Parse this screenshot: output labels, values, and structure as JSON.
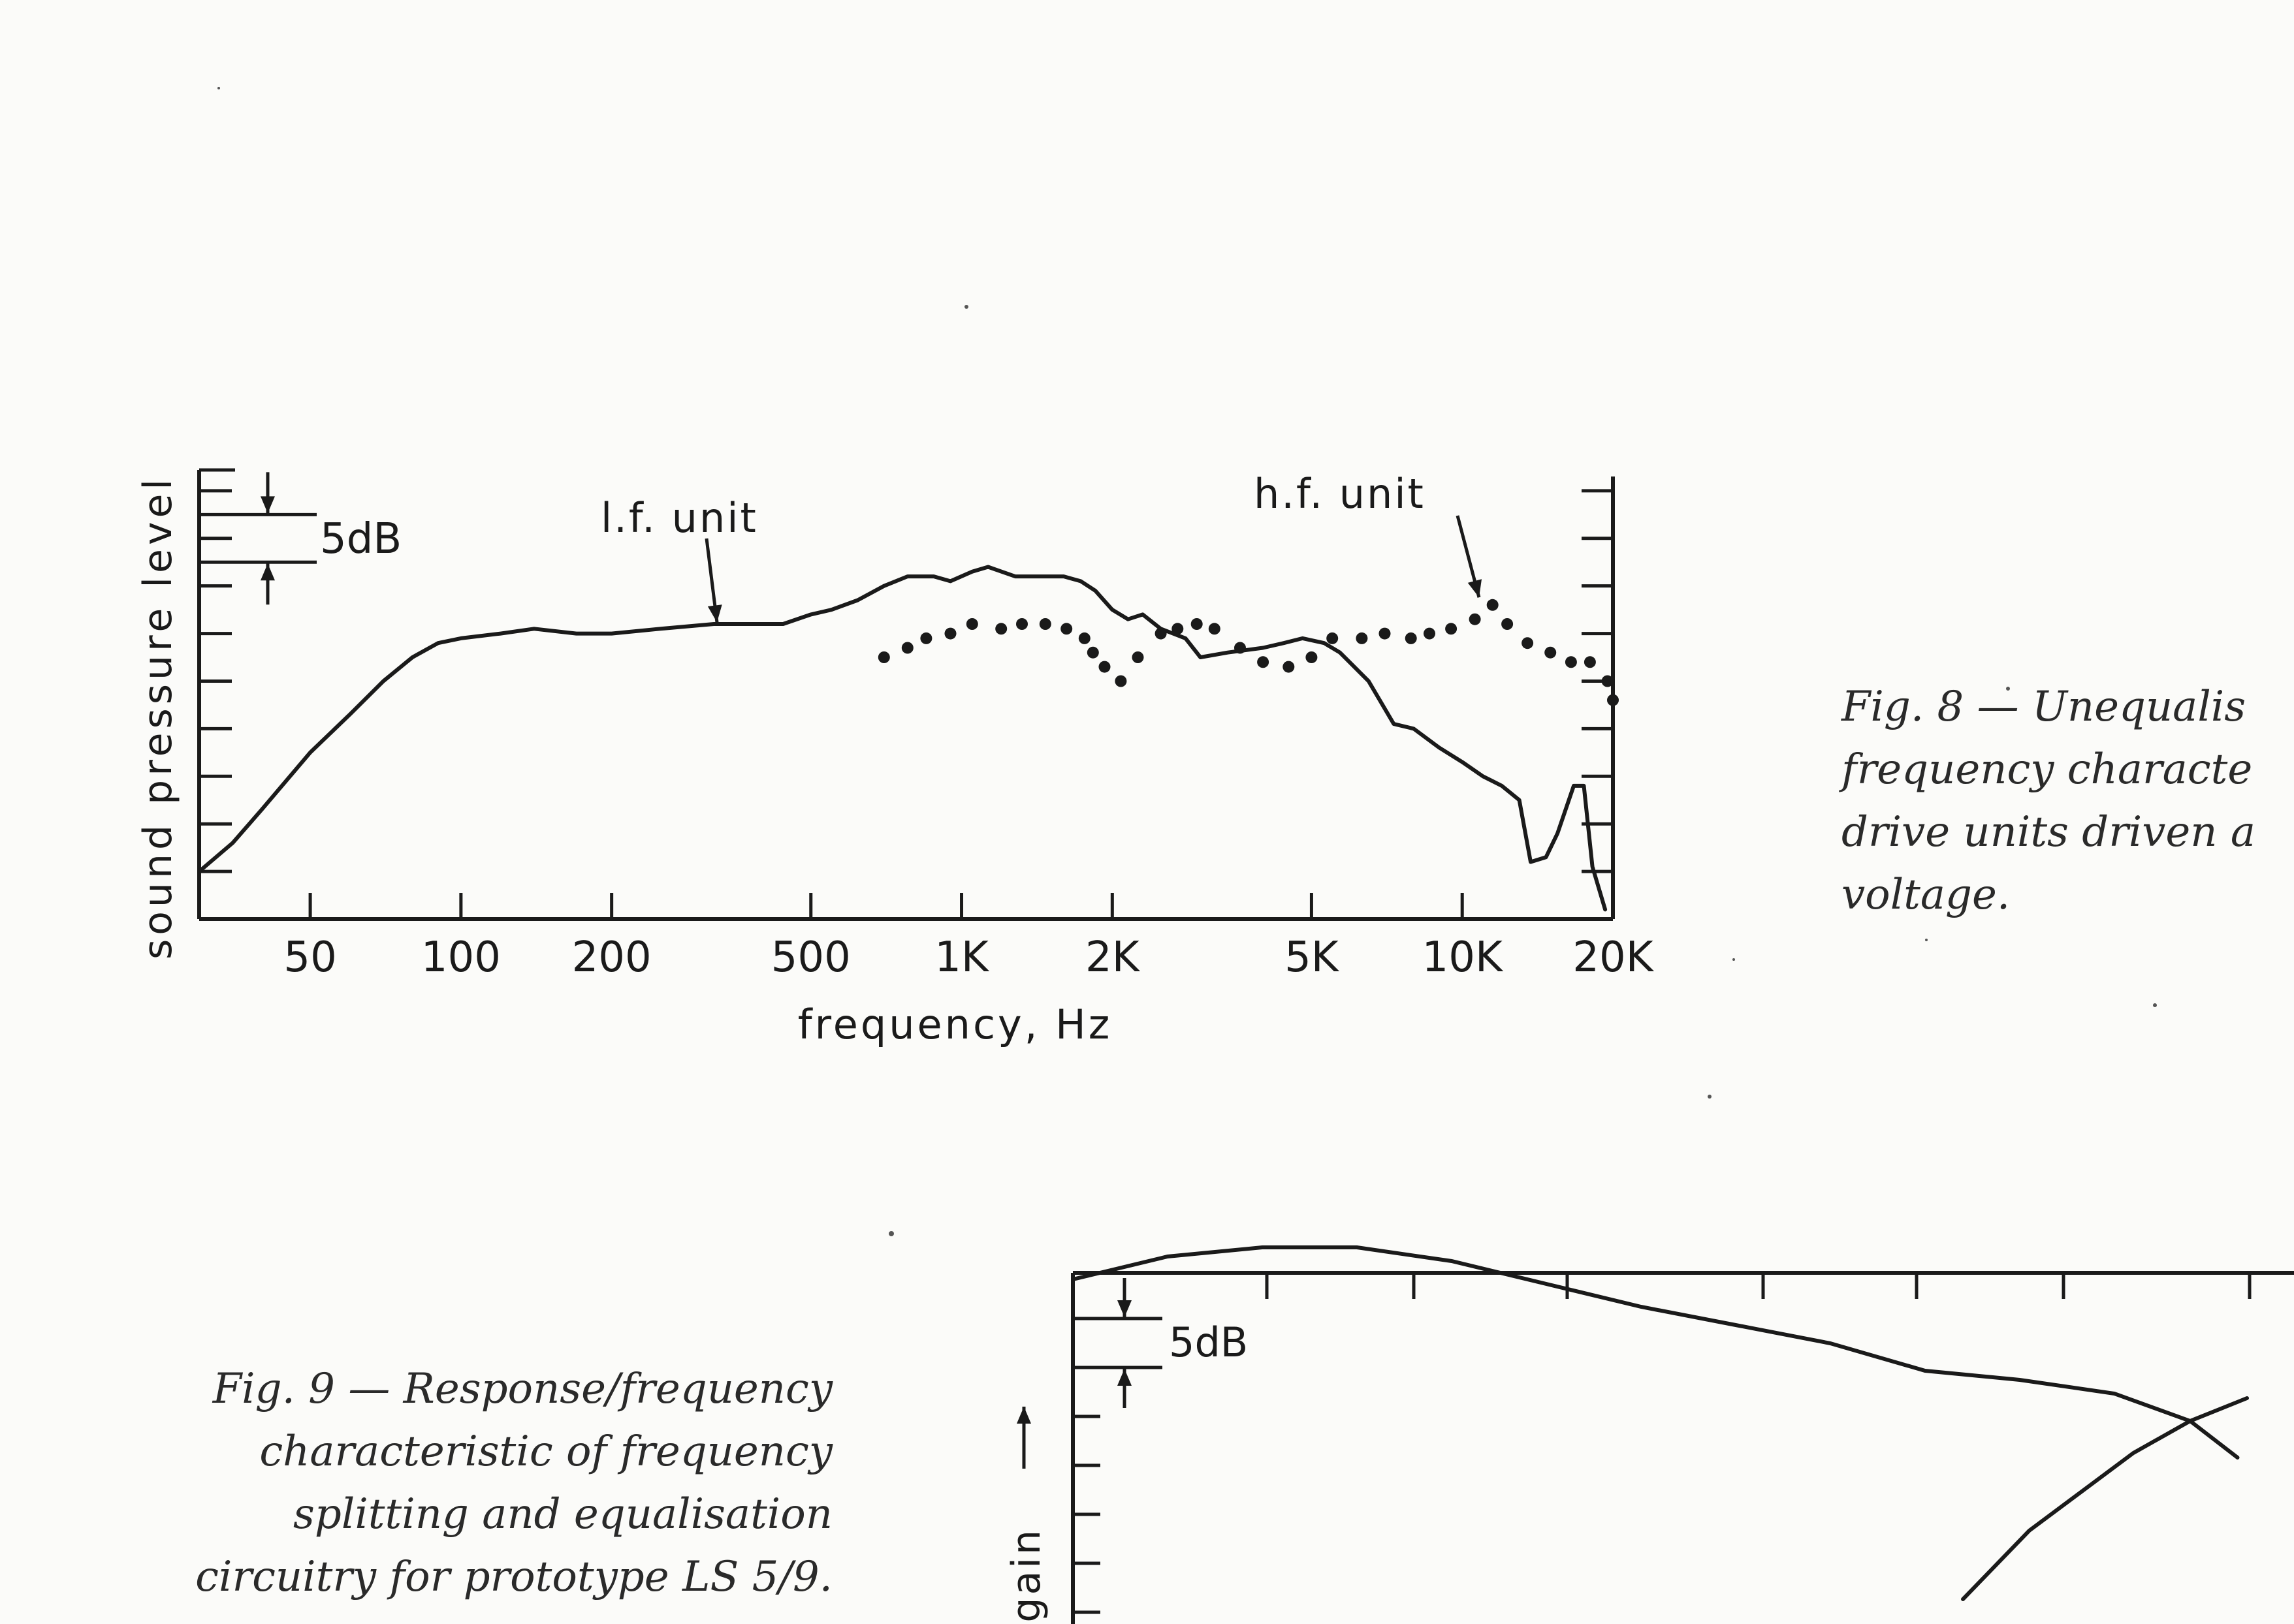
{
  "chart_data": [
    {
      "id": "fig8",
      "type": "line",
      "xscale": "log",
      "xlabel": "frequency, Hz",
      "ylabel": "sound pressure level",
      "xlim": [
        30,
        20000
      ],
      "ylim": [
        0,
        9.3
      ],
      "x_ticks": [
        50,
        100,
        200,
        500,
        1000,
        2000,
        5000,
        10000,
        20000
      ],
      "x_tick_labels": [
        "50",
        "100",
        "200",
        "500",
        "1K",
        "2K",
        "5K",
        "10K",
        "20K"
      ],
      "y_ticks": [
        1,
        2,
        3,
        4,
        5,
        6,
        7,
        8,
        9
      ],
      "scale_bar_label": "5dB",
      "scale_bar_span": [
        7.5,
        8.5
      ],
      "series": [
        {
          "name": "l.f. unit",
          "style": "solid",
          "color": "#1a1a1a",
          "points": [
            [
              30,
              1.0
            ],
            [
              35,
              1.6
            ],
            [
              40,
              2.3
            ],
            [
              50,
              3.5
            ],
            [
              60,
              4.3
            ],
            [
              70,
              5.0
            ],
            [
              80,
              5.5
            ],
            [
              90,
              5.8
            ],
            [
              100,
              5.9
            ],
            [
              120,
              6.0
            ],
            [
              140,
              6.1
            ],
            [
              170,
              6.0
            ],
            [
              200,
              6.0
            ],
            [
              250,
              6.1
            ],
            [
              320,
              6.2
            ],
            [
              400,
              6.2
            ],
            [
              440,
              6.2
            ],
            [
              500,
              6.4
            ],
            [
              550,
              6.5
            ],
            [
              620,
              6.7
            ],
            [
              700,
              7.0
            ],
            [
              780,
              7.2
            ],
            [
              880,
              7.2
            ],
            [
              950,
              7.1
            ],
            [
              1050,
              7.3
            ],
            [
              1130,
              7.4
            ],
            [
              1280,
              7.2
            ],
            [
              1400,
              7.2
            ],
            [
              1600,
              7.2
            ],
            [
              1730,
              7.1
            ],
            [
              1850,
              6.9
            ],
            [
              2000,
              6.5
            ],
            [
              2150,
              6.3
            ],
            [
              2300,
              6.4
            ],
            [
              2500,
              6.1
            ],
            [
              2800,
              5.9
            ],
            [
              3000,
              5.5
            ],
            [
              3400,
              5.6
            ],
            [
              4000,
              5.7
            ],
            [
              4400,
              5.8
            ],
            [
              4800,
              5.9
            ],
            [
              5300,
              5.8
            ],
            [
              5700,
              5.6
            ],
            [
              6500,
              5.0
            ],
            [
              7300,
              4.1
            ],
            [
              8000,
              4.0
            ],
            [
              9000,
              3.6
            ],
            [
              10000,
              3.3
            ],
            [
              11000,
              3.0
            ],
            [
              12000,
              2.8
            ],
            [
              13000,
              2.5
            ],
            [
              13700,
              1.2
            ],
            [
              14700,
              1.3
            ],
            [
              15500,
              1.8
            ],
            [
              16700,
              2.8
            ],
            [
              17500,
              2.8
            ],
            [
              18200,
              1.1
            ],
            [
              19300,
              0.2
            ]
          ]
        },
        {
          "name": "h.f. unit",
          "style": "dotted",
          "color": "#1a1a1a",
          "points": [
            [
              700,
              5.5
            ],
            [
              780,
              5.7
            ],
            [
              850,
              5.9
            ],
            [
              950,
              6.0
            ],
            [
              1050,
              6.2
            ],
            [
              1200,
              6.1
            ],
            [
              1320,
              6.2
            ],
            [
              1470,
              6.2
            ],
            [
              1620,
              6.1
            ],
            [
              1760,
              5.9
            ],
            [
              1830,
              5.6
            ],
            [
              1930,
              5.3
            ],
            [
              2080,
              5.0
            ],
            [
              2250,
              5.5
            ],
            [
              2500,
              6.0
            ],
            [
              2700,
              6.1
            ],
            [
              2950,
              6.2
            ],
            [
              3200,
              6.1
            ],
            [
              3600,
              5.7
            ],
            [
              4000,
              5.4
            ],
            [
              4500,
              5.3
            ],
            [
              5000,
              5.5
            ],
            [
              5500,
              5.9
            ],
            [
              6300,
              5.9
            ],
            [
              7000,
              6.0
            ],
            [
              7900,
              5.9
            ],
            [
              8600,
              6.0
            ],
            [
              9500,
              6.1
            ],
            [
              10600,
              6.3
            ],
            [
              11500,
              6.6
            ],
            [
              12300,
              6.2
            ],
            [
              13500,
              5.8
            ],
            [
              15000,
              5.6
            ],
            [
              16500,
              5.4
            ],
            [
              18000,
              5.4
            ],
            [
              19500,
              5.0
            ],
            [
              20000,
              4.6
            ]
          ]
        }
      ]
    },
    {
      "id": "fig9",
      "type": "line",
      "ylabel": "gain",
      "scale_bar_label": "5dB",
      "series": [
        {
          "points": [
            [
              0,
              7.0
            ],
            [
              1,
              7.5
            ],
            [
              2,
              7.7
            ],
            [
              3,
              7.7
            ],
            [
              4,
              7.4
            ],
            [
              5,
              6.9
            ],
            [
              6,
              6.4
            ],
            [
              7,
              6.0
            ],
            [
              8,
              5.6
            ],
            [
              9,
              5.0
            ],
            [
              10,
              4.8
            ],
            [
              11,
              4.5
            ],
            [
              11.8,
              3.9
            ],
            [
              12.3,
              3.1
            ]
          ]
        },
        {
          "points": [
            [
              9.4,
              0.0
            ],
            [
              10.1,
              1.5
            ],
            [
              11.2,
              3.2
            ],
            [
              11.8,
              3.9
            ],
            [
              12.4,
              4.4
            ]
          ]
        }
      ]
    }
  ],
  "captions": {
    "fig8": [
      "Fig. 8 — Unequalis",
      "frequency characte",
      "drive units driven a",
      "voltage."
    ],
    "fig9": [
      "Fig. 9 — Response/frequency",
      "characteristic of frequency",
      "splitting and equalisation",
      "circuitry for prototype LS 5/9."
    ]
  }
}
